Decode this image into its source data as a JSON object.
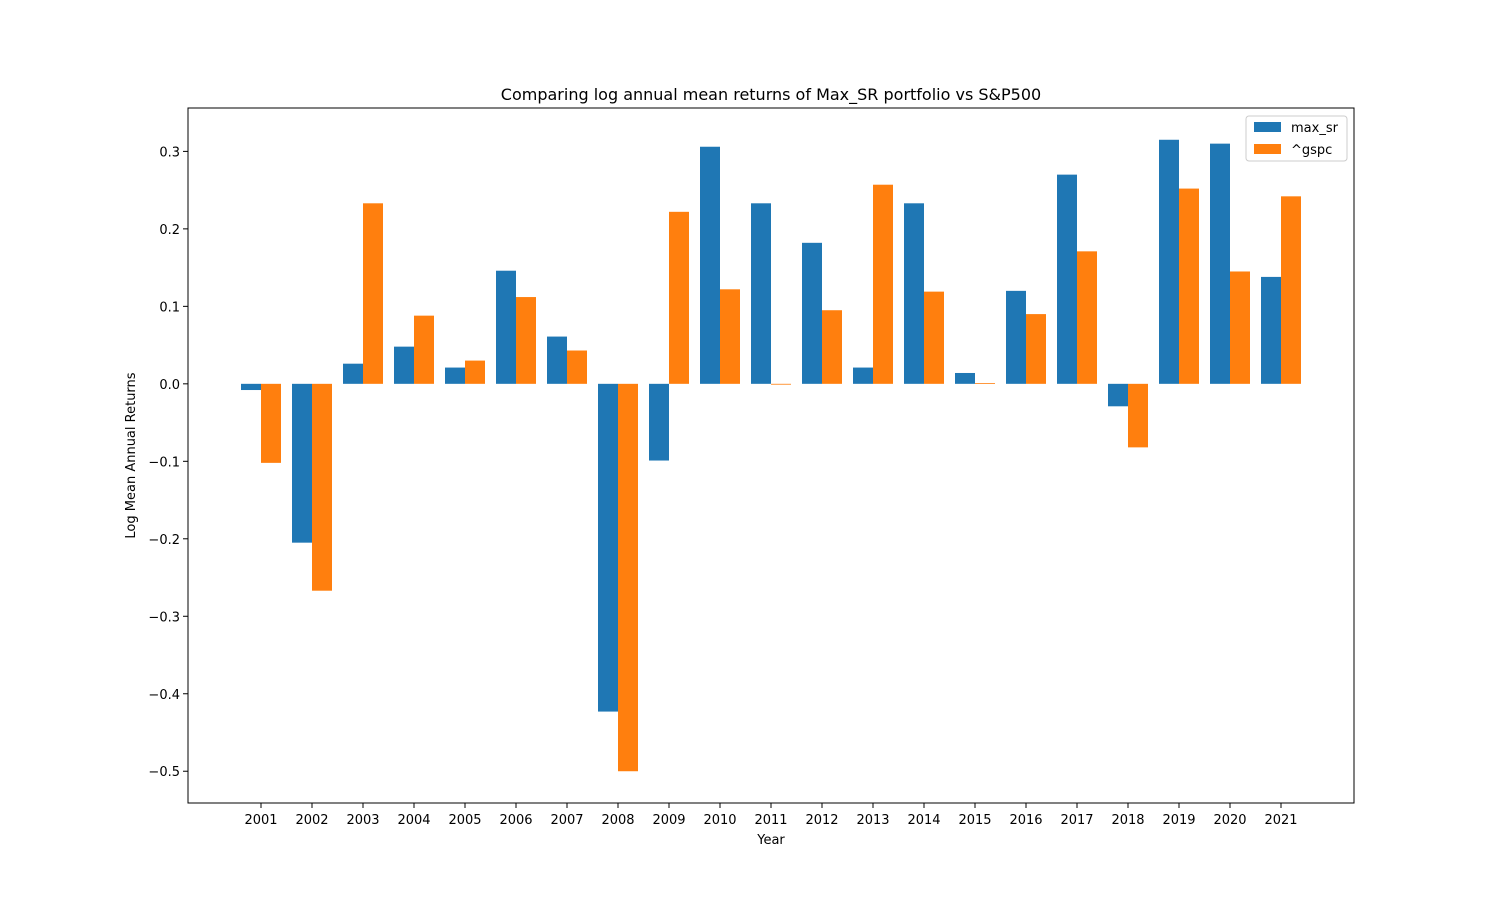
{
  "chart_data": {
    "type": "bar",
    "title": "Comparing log annual mean returns of Max_SR portfolio vs S&P500",
    "xlabel": "Year",
    "ylabel": "Log Mean Annual Returns",
    "categories": [
      "2001",
      "2002",
      "2003",
      "2004",
      "2005",
      "2006",
      "2007",
      "2008",
      "2009",
      "2010",
      "2011",
      "2012",
      "2013",
      "2014",
      "2015",
      "2016",
      "2017",
      "2018",
      "2019",
      "2020",
      "2021"
    ],
    "series": [
      {
        "name": "max_sr",
        "color": "#1f77b4",
        "values": [
          -0.008,
          -0.205,
          0.026,
          0.048,
          0.021,
          0.146,
          0.061,
          -0.423,
          -0.099,
          0.306,
          0.233,
          0.182,
          0.021,
          0.233,
          0.014,
          0.12,
          0.27,
          -0.029,
          0.315,
          0.31,
          0.138
        ]
      },
      {
        "name": "^gspc",
        "color": "#ff7f0e",
        "values": [
          -0.102,
          -0.267,
          0.233,
          0.088,
          0.03,
          0.112,
          0.043,
          -0.5,
          0.222,
          0.122,
          0.0,
          0.095,
          0.257,
          0.119,
          0.001,
          0.09,
          0.171,
          -0.082,
          0.252,
          0.145,
          0.242
        ]
      }
    ],
    "ylim": [
      -0.541,
      0.356
    ],
    "yticks": [
      -0.5,
      -0.4,
      -0.3,
      -0.2,
      -0.1,
      0.0,
      0.1,
      0.2,
      0.3
    ],
    "ytick_labels": [
      "−0.5",
      "−0.4",
      "−0.3",
      "−0.2",
      "−0.1",
      "0.0",
      "0.1",
      "0.2",
      "0.3"
    ],
    "grid": false,
    "legend_position": "top-right"
  }
}
